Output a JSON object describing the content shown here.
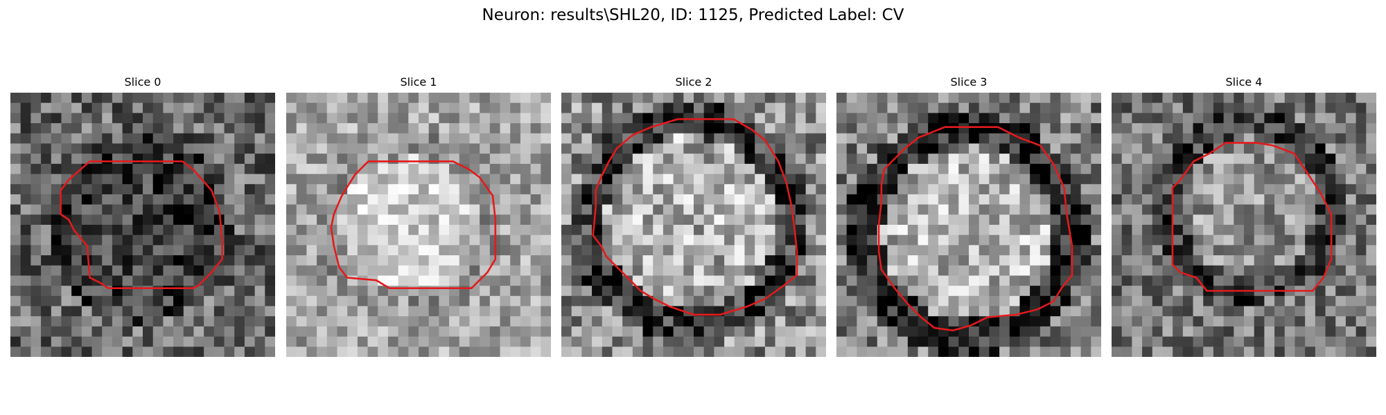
{
  "figure": {
    "title": "Neuron: results\\SHL20, ID: 1125, Predicted Label: CV"
  },
  "panels": [
    {
      "title": "Slice 0",
      "seed": 11,
      "bg_base": 105,
      "center_base": 58,
      "ring_base": 52,
      "noise": 70,
      "contour_color": "#e41a1c",
      "contour_pts": [
        [
          0.3,
          0.26
        ],
        [
          0.65,
          0.26
        ],
        [
          0.69,
          0.29
        ],
        [
          0.76,
          0.37
        ],
        [
          0.79,
          0.45
        ],
        [
          0.8,
          0.56
        ],
        [
          0.8,
          0.63
        ],
        [
          0.76,
          0.68
        ],
        [
          0.71,
          0.73
        ],
        [
          0.69,
          0.74
        ],
        [
          0.37,
          0.74
        ],
        [
          0.34,
          0.72
        ],
        [
          0.3,
          0.7
        ],
        [
          0.29,
          0.58
        ],
        [
          0.24,
          0.52
        ],
        [
          0.22,
          0.48
        ],
        [
          0.19,
          0.46
        ],
        [
          0.19,
          0.37
        ],
        [
          0.22,
          0.33
        ]
      ]
    },
    {
      "title": "Slice 1",
      "seed": 23,
      "bg_base": 165,
      "center_base": 205,
      "ring_base": 150,
      "noise": 55,
      "contour_color": "#e41a1c",
      "contour_pts": [
        [
          0.31,
          0.26
        ],
        [
          0.63,
          0.26
        ],
        [
          0.69,
          0.29
        ],
        [
          0.73,
          0.32
        ],
        [
          0.78,
          0.39
        ],
        [
          0.79,
          0.48
        ],
        [
          0.79,
          0.63
        ],
        [
          0.76,
          0.68
        ],
        [
          0.7,
          0.74
        ],
        [
          0.39,
          0.74
        ],
        [
          0.34,
          0.71
        ],
        [
          0.23,
          0.7
        ],
        [
          0.2,
          0.66
        ],
        [
          0.18,
          0.58
        ],
        [
          0.17,
          0.51
        ],
        [
          0.18,
          0.46
        ],
        [
          0.21,
          0.39
        ],
        [
          0.26,
          0.31
        ]
      ]
    },
    {
      "title": "Slice 2",
      "seed": 37,
      "bg_base": 140,
      "center_base": 175,
      "ring_base": 60,
      "noise": 75,
      "contour_color": "#e41a1c",
      "contour_pts": [
        [
          0.44,
          0.1
        ],
        [
          0.65,
          0.1
        ],
        [
          0.72,
          0.14
        ],
        [
          0.77,
          0.18
        ],
        [
          0.82,
          0.26
        ],
        [
          0.85,
          0.34
        ],
        [
          0.87,
          0.43
        ],
        [
          0.88,
          0.51
        ],
        [
          0.89,
          0.6
        ],
        [
          0.89,
          0.69
        ],
        [
          0.84,
          0.73
        ],
        [
          0.77,
          0.78
        ],
        [
          0.7,
          0.81
        ],
        [
          0.6,
          0.84
        ],
        [
          0.5,
          0.84
        ],
        [
          0.41,
          0.81
        ],
        [
          0.35,
          0.78
        ],
        [
          0.3,
          0.75
        ],
        [
          0.26,
          0.71
        ],
        [
          0.19,
          0.64
        ],
        [
          0.17,
          0.62
        ],
        [
          0.15,
          0.58
        ],
        [
          0.12,
          0.54
        ],
        [
          0.13,
          0.43
        ],
        [
          0.13,
          0.37
        ],
        [
          0.15,
          0.32
        ],
        [
          0.18,
          0.26
        ],
        [
          0.21,
          0.21
        ],
        [
          0.27,
          0.16
        ],
        [
          0.34,
          0.13
        ]
      ]
    },
    {
      "title": "Slice 3",
      "seed": 51,
      "bg_base": 125,
      "center_base": 180,
      "ring_base": 40,
      "noise": 70,
      "contour_color": "#e41a1c",
      "contour_pts": [
        [
          0.31,
          0.17
        ],
        [
          0.41,
          0.13
        ],
        [
          0.61,
          0.13
        ],
        [
          0.69,
          0.17
        ],
        [
          0.77,
          0.2
        ],
        [
          0.82,
          0.27
        ],
        [
          0.86,
          0.36
        ],
        [
          0.87,
          0.46
        ],
        [
          0.89,
          0.58
        ],
        [
          0.89,
          0.69
        ],
        [
          0.85,
          0.74
        ],
        [
          0.82,
          0.79
        ],
        [
          0.76,
          0.82
        ],
        [
          0.68,
          0.84
        ],
        [
          0.57,
          0.85
        ],
        [
          0.51,
          0.88
        ],
        [
          0.44,
          0.9
        ],
        [
          0.37,
          0.89
        ],
        [
          0.32,
          0.85
        ],
        [
          0.27,
          0.8
        ],
        [
          0.22,
          0.74
        ],
        [
          0.17,
          0.67
        ],
        [
          0.16,
          0.6
        ],
        [
          0.16,
          0.5
        ],
        [
          0.17,
          0.41
        ],
        [
          0.17,
          0.35
        ],
        [
          0.18,
          0.29
        ],
        [
          0.22,
          0.25
        ],
        [
          0.26,
          0.21
        ]
      ]
    },
    {
      "title": "Slice 4",
      "seed": 67,
      "bg_base": 118,
      "center_base": 150,
      "ring_base": 60,
      "noise": 65,
      "contour_color": "#e41a1c",
      "contour_pts": [
        [
          0.31,
          0.26
        ],
        [
          0.37,
          0.23
        ],
        [
          0.43,
          0.19
        ],
        [
          0.51,
          0.19
        ],
        [
          0.55,
          0.19
        ],
        [
          0.61,
          0.2
        ],
        [
          0.69,
          0.23
        ],
        [
          0.73,
          0.29
        ],
        [
          0.79,
          0.38
        ],
        [
          0.83,
          0.46
        ],
        [
          0.83,
          0.63
        ],
        [
          0.8,
          0.7
        ],
        [
          0.76,
          0.75
        ],
        [
          0.36,
          0.75
        ],
        [
          0.32,
          0.7
        ],
        [
          0.26,
          0.68
        ],
        [
          0.23,
          0.65
        ],
        [
          0.23,
          0.36
        ],
        [
          0.26,
          0.33
        ]
      ]
    }
  ]
}
